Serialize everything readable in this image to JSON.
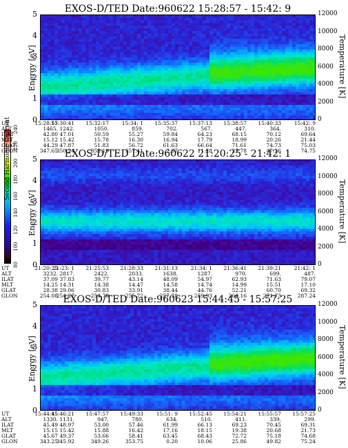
{
  "colorbar": {
    "label": "Second Harmonic Current",
    "ticks": [
      "80",
      "100",
      "120",
      "140",
      "160",
      "180",
      "200",
      "220",
      "240"
    ]
  },
  "chart_data": [
    {
      "type": "heatmap",
      "title": "EXOS-D/TED   Date:960622  15:28:57 - 15:42: 9",
      "ylabel": "Energy [eV]",
      "ylabel_right": "Temperature [K]",
      "ylim": [
        0,
        5
      ],
      "yticks": [
        "0",
        "1",
        "2",
        "3",
        "4",
        "5"
      ],
      "ylim_right": [
        0,
        12000
      ],
      "yticks_right": [
        "0",
        "2000",
        "4000",
        "6000",
        "8000",
        "10000",
        "12000"
      ],
      "orbit_labels": [
        "UT",
        "ALT",
        "ILAT",
        "MLT",
        "GLAT",
        "GLON"
      ],
      "orbit": [
        [
          "15:28:57",
          "1465.",
          "42.80",
          "15.12",
          "44.29",
          "347.65"
        ],
        [
          "15:30:41",
          "1242.",
          "47.01",
          "15.42",
          "47.87",
          "350.24"
        ],
        [
          "15:32:17",
          "1050.",
          "50.59",
          "15.78",
          "51.83",
          "353.19"
        ],
        [
          "15:34: 1",
          "859.",
          "55.27",
          "16.30",
          "56.72",
          "357.41"
        ],
        [
          "15:35:37",
          "702.",
          "59.84",
          "16.94",
          "61.63",
          "2.97"
        ],
        [
          "15:37:13",
          "567.",
          "64.23",
          "17.79",
          "66.64",
          "11.28"
        ],
        [
          "15:38:57",
          "447.",
          "68.15",
          "18.99",
          "71.61",
          "25.78"
        ],
        [
          "15:40:33",
          "364.",
          "70.12",
          "20.26",
          "74.73",
          "47.26"
        ],
        [
          "15:42: 9",
          "310.",
          "69.64",
          "21.44",
          "75.03",
          "74.75"
        ]
      ]
    },
    {
      "type": "heatmap",
      "title": "EXOS-D/TED   Date:960622  21:20:25 - 21:42: 1",
      "ylabel": "Energy [eV]",
      "ylabel_right": "Temperature [K]",
      "ylim": [
        0,
        5
      ],
      "yticks": [
        "0",
        "1",
        "2",
        "3",
        "4",
        "5"
      ],
      "ylim_right": [
        0,
        12000
      ],
      "yticks_right": [
        "0",
        "2000",
        "4000",
        "6000",
        "8000",
        "10000",
        "12000"
      ],
      "orbit_labels": [
        "UT",
        "ALT",
        "ILAT",
        "MLT",
        "GLAT",
        "GLON"
      ],
      "orbit": [
        [
          "21:20:25",
          "3232.",
          "37.09",
          "14.25",
          "28.38",
          "254.08"
        ],
        [
          "21:23: 1",
          "2817.",
          "37.83",
          "14.31",
          "29.06",
          "254.27"
        ],
        [
          "21:25:53",
          "2422.",
          "39.77",
          "14.38",
          "30.83",
          "254.78"
        ],
        [
          "21:28:33",
          "2033.",
          "43.14",
          "14.47",
          "33.91",
          "255.72"
        ],
        [
          "21:31:13",
          "1638.",
          "48.09",
          "14.58",
          "38.44",
          "257.28"
        ],
        [
          "21:34: 1",
          "1287.",
          "54.97",
          "14.74",
          "44.76",
          "259.93"
        ],
        [
          "21:36:41",
          "970.",
          "62.93",
          "14.99",
          "52.21",
          "264.16"
        ],
        [
          "21:39:21",
          "699.",
          "71.63",
          "15.51",
          "60.70",
          "271.73"
        ],
        [
          "21:42: 1",
          "487.",
          "79.07",
          "17.10",
          "69.32",
          "287.24"
        ]
      ]
    },
    {
      "type": "heatmap",
      "title": "EXOS-D/TED   Date:960623  15:44:45 - 15:57:25",
      "ylabel": "Energy [eV]",
      "ylabel_right": "Temperature [K]",
      "ylim": [
        0,
        5
      ],
      "yticks": [
        "0",
        "1",
        "2",
        "3",
        "4",
        "5"
      ],
      "ylim_right": [
        0,
        12000
      ],
      "yticks_right": [
        "0",
        "2000",
        "4000",
        "6000",
        "8000",
        "10000",
        "12000"
      ],
      "orbit_labels": [
        "UT",
        "ALT",
        "ILAT",
        "MLT",
        "GLAT",
        "GLON"
      ],
      "orbit": [
        [
          "15:44:45",
          "1330.",
          "45.49",
          "15.15",
          "45.67",
          "343.25"
        ],
        [
          "15:46:21",
          "1131.",
          "48.97",
          "15.42",
          "49.37",
          "345.92"
        ],
        [
          "15:47:57",
          "947.",
          "53.00",
          "15.88",
          "53.66",
          "349.26"
        ],
        [
          "15:49:33",
          "780.",
          "57.46",
          "16.42",
          "58.41",
          "353.75"
        ],
        [
          "15:51: 9",
          "634.",
          "61.99",
          "17.16",
          "63.45",
          "0.20"
        ],
        [
          "15:52:45",
          "510.",
          "66.13",
          "18.15",
          "68.43",
          "10.06"
        ],
        [
          "15:54:21",
          "411.",
          "69.23",
          "19.38",
          "72.72",
          "25.86"
        ],
        [
          "15:55:57",
          "339.",
          "70.45",
          "20.68",
          "75.18",
          "49.82"
        ],
        [
          "15:57:25",
          "299.",
          "69.31",
          "21.73",
          "74.68",
          "75.24"
        ]
      ]
    }
  ]
}
